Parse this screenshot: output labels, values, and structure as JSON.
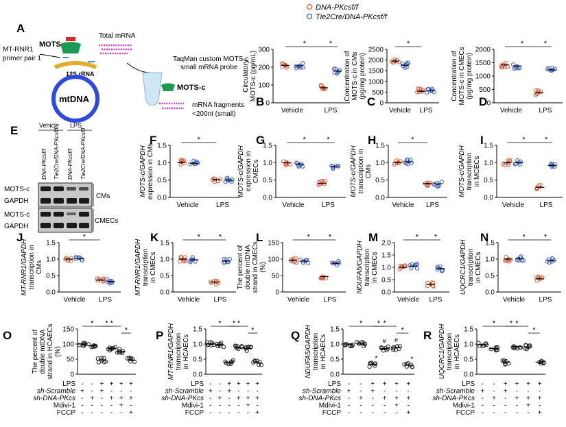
{
  "legend": {
    "wt_label": "DNA-PKcsf/f",
    "ko_label": "Tie2Cre/DNA-PKcsf/f",
    "wt_color": "#e0603c",
    "ko_color": "#3d63c9"
  },
  "diagram": {
    "mots_label": "MOTS-c",
    "primer_label_1": "MT-RNR1",
    "primer_label_2": "primer pair 1",
    "rrna_label": "12S rRNA",
    "mtdna_label": "mtDNA",
    "total_mrna": "Total mRNA",
    "probe_label_1": "TaqMan custom MOTS-c",
    "probe_label_2": "small mRNA probe",
    "frag_label_1": "mRNA fragments",
    "frag_label_2": "<200nt (small)"
  },
  "blot": {
    "col_groups": [
      "Vehicle",
      "LPS"
    ],
    "lanes": [
      "DNA-PKcsf/f",
      "Tie2Cre/DNA-PKcsf/f",
      "DNA-PKcsf/f",
      "Tie2Cre/DNA-PKcsf/f"
    ],
    "rows": [
      "MOTS-c",
      "GAPDH",
      "MOTS-c",
      "GAPDH"
    ],
    "groups": [
      "CMs",
      "CMECs"
    ]
  },
  "sig": "*",
  "sig_hash": "#",
  "factor_table": {
    "rows": [
      "LPS",
      "sh-Scramble",
      "sh-DNA-PKcs",
      "Mdivi-1",
      "FCCP"
    ],
    "signs": [
      [
        "-",
        "-",
        "+",
        "+",
        "+",
        "+"
      ],
      [
        "+",
        "-",
        "+",
        "-",
        "-",
        "-"
      ],
      [
        "-",
        "+",
        "-",
        "+",
        "+",
        "+"
      ],
      [
        "-",
        "-",
        "-",
        "-",
        "+",
        "-"
      ],
      [
        "-",
        "-",
        "-",
        "-",
        "-",
        "+"
      ]
    ]
  },
  "chart_data": [
    {
      "id": "B",
      "type": "scatter",
      "title": "",
      "ylabel": "Circulatory MOTS-c (pg/mL)",
      "categories": [
        "Vehicle",
        "LPS"
      ],
      "ylim": [
        0,
        300
      ],
      "yticks": [
        "0",
        "100",
        "200",
        "300"
      ],
      "series": [
        {
          "name": "DNA-PKcsf/f",
          "values": [
            210,
            85
          ]
        },
        {
          "name": "Tie2Cre/DNA-PKcsf/f",
          "values": [
            208,
            178
          ]
        }
      ]
    },
    {
      "id": "C",
      "type": "scatter",
      "title": "",
      "ylabel": "Concentration of MOTS-c in CMs (pg/mg protein)",
      "categories": [
        "Vehicle",
        "LPS"
      ],
      "ylim": [
        0,
        2500
      ],
      "yticks": [
        "0",
        "500",
        "1000",
        "1500",
        "2000",
        "2500"
      ],
      "series": [
        {
          "name": "DNA-PKcsf/f",
          "values": [
            1950,
            540
          ]
        },
        {
          "name": "Tie2Cre/DNA-PKcsf/f",
          "values": [
            1760,
            560
          ]
        }
      ]
    },
    {
      "id": "D",
      "type": "scatter",
      "title": "",
      "ylabel": "Concentration of MOTS-c in CMECs (pg/mg protein)",
      "categories": [
        "Vehicle",
        "LPS"
      ],
      "ylim": [
        0,
        2000
      ],
      "yticks": [
        "0",
        "500",
        "1000",
        "1500",
        "2000"
      ],
      "series": [
        {
          "name": "DNA-PKcsf/f",
          "values": [
            1420,
            380
          ]
        },
        {
          "name": "Tie2Cre/DNA-PKcsf/f",
          "values": [
            1380,
            1230
          ]
        }
      ]
    },
    {
      "id": "F",
      "type": "scatter",
      "title": "",
      "ylabel": "MOTS-c/GAPDH expression in CMs",
      "categories": [
        "Vehicle",
        "LPS"
      ],
      "ylim": [
        0,
        1.5
      ],
      "yticks": [
        "0.0",
        "0.5",
        "1.0",
        "1.5"
      ],
      "series": [
        {
          "name": "DNA-PKcsf/f",
          "values": [
            1.0,
            0.52
          ]
        },
        {
          "name": "Tie2Cre/DNA-PKcsf/f",
          "values": [
            0.98,
            0.5
          ]
        }
      ]
    },
    {
      "id": "G",
      "type": "scatter",
      "title": "",
      "ylabel": "MOTS-c/GAPDH expression in CMECs",
      "categories": [
        "Vehicle",
        "LPS"
      ],
      "ylim": [
        0,
        1.5
      ],
      "yticks": [
        "0.0",
        "0.5",
        "1.0",
        "1.5"
      ],
      "series": [
        {
          "name": "DNA-PKcsf/f",
          "values": [
            1.0,
            0.4
          ]
        },
        {
          "name": "Tie2Cre/DNA-PKcsf/f",
          "values": [
            0.96,
            0.88
          ]
        }
      ]
    },
    {
      "id": "H",
      "type": "scatter",
      "title": "",
      "ylabel": "MOTS-c/GAPDH transcription in CMs",
      "categories": [
        "Vehicle",
        "LPS"
      ],
      "ylim": [
        0,
        1.5
      ],
      "yticks": [
        "0.0",
        "0.5",
        "1.0",
        "1.5"
      ],
      "series": [
        {
          "name": "DNA-PKcsf/f",
          "values": [
            1.0,
            0.4
          ]
        },
        {
          "name": "Tie2Cre/DNA-PKcsf/f",
          "values": [
            1.02,
            0.39
          ]
        }
      ]
    },
    {
      "id": "I",
      "type": "scatter",
      "title": "",
      "ylabel": "MOTS-c/GAPDH transcription in MCECs",
      "categories": [
        "Vehicle",
        "LPS"
      ],
      "ylim": [
        0,
        1.5
      ],
      "yticks": [
        "0.0",
        "0.5",
        "1.0",
        "1.5"
      ],
      "series": [
        {
          "name": "DNA-PKcsf/f",
          "values": [
            1.0,
            0.29
          ]
        },
        {
          "name": "Tie2Cre/DNA-PKcsf/f",
          "values": [
            1.0,
            0.92
          ]
        }
      ]
    },
    {
      "id": "J",
      "type": "scatter",
      "title": "",
      "ylabel": "MT-RNR1/GAPDH transcription in CMs",
      "categories": [
        "Vehicle",
        "LPS"
      ],
      "ylim": [
        0,
        1.5
      ],
      "yticks": [
        "0.0",
        "0.5",
        "1.0",
        "1.5"
      ],
      "series": [
        {
          "name": "DNA-PKcsf/f",
          "values": [
            1.0,
            0.36
          ]
        },
        {
          "name": "Tie2Cre/DNA-PKcsf/f",
          "values": [
            1.02,
            0.32
          ]
        }
      ]
    },
    {
      "id": "K",
      "type": "scatter",
      "title": "",
      "ylabel": "MT-RNR1/GAPDH transcription in CMECs",
      "categories": [
        "Vehicle",
        "LPS"
      ],
      "ylim": [
        0,
        1.5
      ],
      "yticks": [
        "0.0",
        "0.5",
        "1.0",
        "1.5"
      ],
      "series": [
        {
          "name": "DNA-PKcsf/f",
          "values": [
            1.0,
            0.3
          ]
        },
        {
          "name": "Tie2Cre/DNA-PKcsf/f",
          "values": [
            0.98,
            0.94
          ]
        }
      ]
    },
    {
      "id": "L",
      "type": "scatter",
      "title": "",
      "ylabel": "The percent of double mtDNA strand in CMECs (%)",
      "categories": [
        "Vehicle",
        "LPS"
      ],
      "ylim": [
        0,
        150
      ],
      "yticks": [
        "0",
        "50",
        "100",
        "150"
      ],
      "series": [
        {
          "name": "DNA-PKcsf/f",
          "values": [
            96,
            47
          ]
        },
        {
          "name": "Tie2Cre/DNA-PKcsf/f",
          "values": [
            94,
            87
          ]
        }
      ]
    },
    {
      "id": "M",
      "type": "scatter",
      "title": "",
      "ylabel": "NDUFA5/GAPDH transcription in CMECs",
      "categories": [
        "Vehicle",
        "LPS"
      ],
      "ylim": [
        0,
        2.0
      ],
      "yticks": [
        "0.0",
        "0.5",
        "1.0",
        "1.5",
        "2.0"
      ],
      "series": [
        {
          "name": "DNA-PKcsf/f",
          "values": [
            1.0,
            0.3
          ]
        },
        {
          "name": "Tie2Cre/DNA-PKcsf/f",
          "values": [
            1.05,
            0.95
          ]
        }
      ]
    },
    {
      "id": "N",
      "type": "scatter",
      "title": "",
      "ylabel": "UQCRC1/GAPDH transcription in CMECs",
      "categories": [
        "Vehicle",
        "LPS"
      ],
      "ylim": [
        0,
        1.5
      ],
      "yticks": [
        "0.0",
        "0.5",
        "1.0",
        "1.5"
      ],
      "series": [
        {
          "name": "DNA-PKcsf/f",
          "values": [
            1.0,
            0.4
          ]
        },
        {
          "name": "Tie2Cre/DNA-PKcsf/f",
          "values": [
            1.02,
            0.95
          ]
        }
      ]
    },
    {
      "id": "O",
      "type": "scatter",
      "title": "",
      "ylabel": "The percent of double mtDNA strand in HCAECs (%)",
      "groups": 6,
      "ylim": [
        0,
        150
      ],
      "yticks": [
        "0",
        "50",
        "100",
        "150"
      ],
      "values": [
        100,
        95,
        47,
        86,
        76,
        47
      ]
    },
    {
      "id": "P",
      "type": "scatter",
      "title": "",
      "ylabel": "MT-RNR1/GAPDH transcription in HCAECs",
      "groups": 6,
      "ylim": [
        0,
        1.5
      ],
      "yticks": [
        "0.0",
        "0.5",
        "1.0",
        "1.5"
      ],
      "values": [
        1.0,
        0.98,
        0.4,
        0.88,
        0.85,
        0.38
      ]
    },
    {
      "id": "Q",
      "type": "scatter",
      "title": "",
      "ylabel": "NDUFA5/GAPDH transcription in HCAECs",
      "groups": 6,
      "ylim": [
        0,
        1.5
      ],
      "yticks": [
        "0.0",
        "0.5",
        "1.0",
        "1.5"
      ],
      "values": [
        1.0,
        1.0,
        0.32,
        0.85,
        0.88,
        0.3
      ]
    },
    {
      "id": "R",
      "type": "scatter",
      "title": "",
      "ylabel": "UQCRC1/GAPDH transcription in HCAECs",
      "groups": 6,
      "ylim": [
        0,
        1.5
      ],
      "yticks": [
        "0.0",
        "0.5",
        "1.0",
        "1.5"
      ],
      "values": [
        0.98,
        0.85,
        0.4,
        0.92,
        0.9,
        0.4
      ]
    }
  ]
}
